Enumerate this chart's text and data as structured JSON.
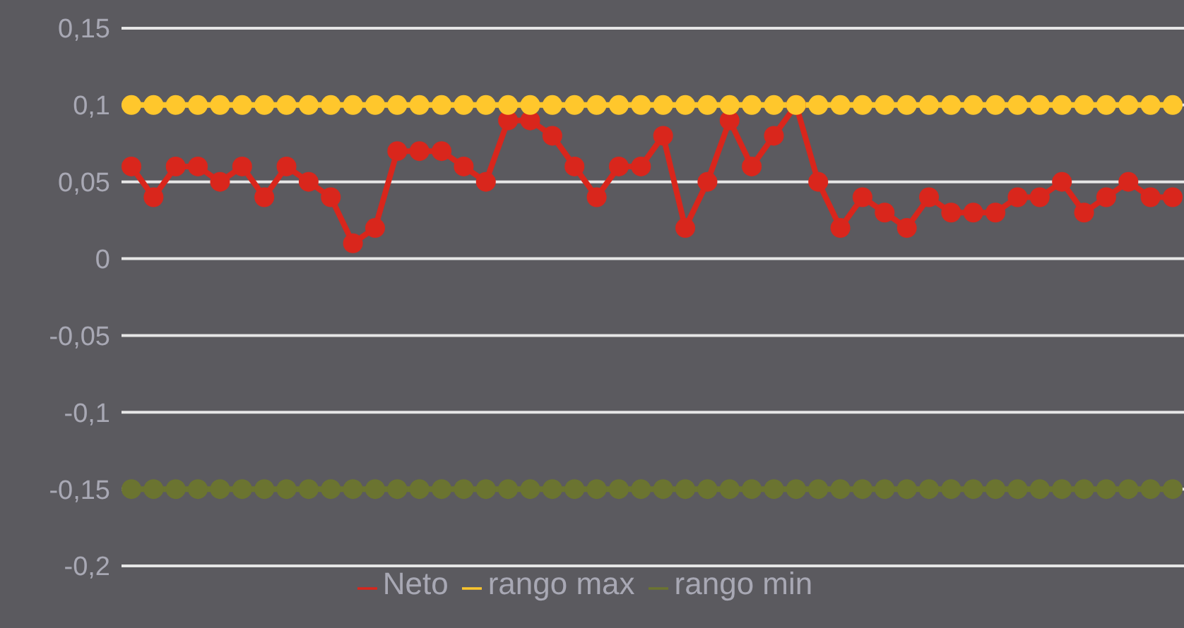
{
  "chart_data": {
    "type": "line",
    "categories": [
      null,
      null,
      null,
      null,
      null,
      null,
      null,
      null,
      null,
      null,
      null,
      null,
      null,
      null,
      null,
      null,
      null,
      null,
      null,
      null,
      null,
      null,
      null,
      null,
      null,
      null,
      null,
      null,
      null,
      null,
      null,
      null,
      null,
      null,
      null,
      null,
      null,
      null,
      null,
      null,
      null,
      null,
      null,
      null,
      null,
      null,
      null,
      null
    ],
    "series": [
      {
        "name": "Neto",
        "color": "#d9261c",
        "values": [
          0.06,
          0.04,
          0.06,
          0.06,
          0.05,
          0.06,
          0.04,
          0.06,
          0.05,
          0.04,
          0.01,
          0.02,
          0.07,
          0.07,
          0.07,
          0.06,
          0.05,
          0.09,
          0.09,
          0.08,
          0.06,
          0.04,
          0.06,
          0.06,
          0.08,
          0.02,
          0.05,
          0.09,
          0.06,
          0.08,
          0.1,
          0.05,
          0.02,
          0.04,
          0.03,
          0.02,
          0.04,
          0.03,
          0.03,
          0.03,
          0.04,
          0.04,
          0.05,
          0.03,
          0.04,
          0.05,
          0.04,
          0.04
        ]
      },
      {
        "name": "rango max",
        "color": "#ffc72c",
        "values": [
          0.1,
          0.1,
          0.1,
          0.1,
          0.1,
          0.1,
          0.1,
          0.1,
          0.1,
          0.1,
          0.1,
          0.1,
          0.1,
          0.1,
          0.1,
          0.1,
          0.1,
          0.1,
          0.1,
          0.1,
          0.1,
          0.1,
          0.1,
          0.1,
          0.1,
          0.1,
          0.1,
          0.1,
          0.1,
          0.1,
          0.1,
          0.1,
          0.1,
          0.1,
          0.1,
          0.1,
          0.1,
          0.1,
          0.1,
          0.1,
          0.1,
          0.1,
          0.1,
          0.1,
          0.1,
          0.1,
          0.1,
          0.1
        ]
      },
      {
        "name": "rango min",
        "color": "#6b7430",
        "values": [
          -0.15,
          -0.15,
          -0.15,
          -0.15,
          -0.15,
          -0.15,
          -0.15,
          -0.15,
          -0.15,
          -0.15,
          -0.15,
          -0.15,
          -0.15,
          -0.15,
          -0.15,
          -0.15,
          -0.15,
          -0.15,
          -0.15,
          -0.15,
          -0.15,
          -0.15,
          -0.15,
          -0.15,
          -0.15,
          -0.15,
          -0.15,
          -0.15,
          -0.15,
          -0.15,
          -0.15,
          -0.15,
          -0.15,
          -0.15,
          -0.15,
          -0.15,
          -0.15,
          -0.15,
          -0.15,
          -0.15,
          -0.15,
          -0.15,
          -0.15,
          -0.15,
          -0.15,
          -0.15,
          -0.15,
          -0.15
        ]
      }
    ],
    "ylim": [
      -0.2,
      0.15
    ],
    "yticks": [
      {
        "value": -0.2,
        "label": "-0,2"
      },
      {
        "value": -0.15,
        "label": "-0,15"
      },
      {
        "value": -0.1,
        "label": "-0,1"
      },
      {
        "value": -0.05,
        "label": "-0,05"
      },
      0,
      {
        "value": 0.05,
        "label": "0,05"
      },
      {
        "value": 0.1,
        "label": "0,1"
      },
      {
        "value": 0.15,
        "label": "0,15"
      }
    ],
    "tick_labels": "y",
    "grid": "y",
    "legend": "bottom",
    "marker": "circle",
    "line_style": "solid"
  }
}
